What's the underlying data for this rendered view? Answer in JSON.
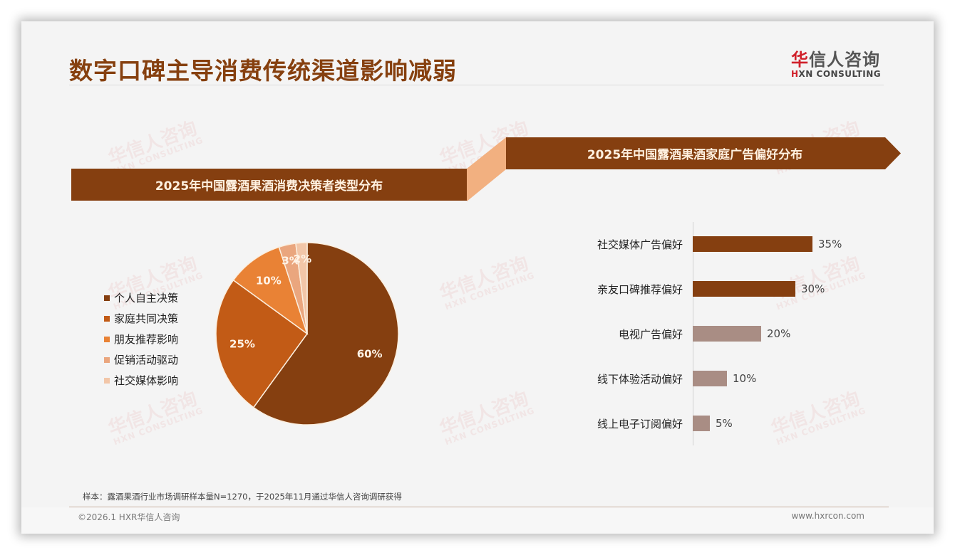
{
  "page": {
    "title": "数字口碑主导消费传统渠道影响减弱",
    "logo": {
      "cn_first": "华",
      "cn_rest": "信人咨询",
      "en_first": "H",
      "en_rest": "XN CONSULTING"
    },
    "watermark": {
      "cn": "华信人咨询",
      "en": "HXN CONSULTING"
    },
    "note": "样本：露酒果酒行业市场调研样本量N=1270，于2025年11月通过华信人咨询调研获得",
    "copyright": "©2026.1 HXR华信人咨询",
    "url": "www.hxrcon.com"
  },
  "colors": {
    "brand_brown": "#853f10",
    "connector": "#f2b080",
    "title": "#86400f",
    "bar_dark": "#853f10",
    "bar_light": "#a98d84"
  },
  "pie_chart": {
    "title": "2025年中国露酒果酒消费决策者类型分布",
    "legend": [
      {
        "label": "个人自主决策",
        "color": "#853f10"
      },
      {
        "label": "家庭共同决策",
        "color": "#c25b16"
      },
      {
        "label": "朋友推荐影响",
        "color": "#e98235"
      },
      {
        "label": "促销活动驱动",
        "color": "#eaa67e"
      },
      {
        "label": "社交媒体影响",
        "color": "#f2c6a8"
      }
    ]
  },
  "bar_chart": {
    "title": "2025年中国露酒果酒家庭广告偏好分布",
    "rows": [
      {
        "label": "社交媒体广告偏好",
        "value": "35%"
      },
      {
        "label": "亲友口碑推荐偏好",
        "value": "30%"
      },
      {
        "label": "电视广告偏好",
        "value": "20%"
      },
      {
        "label": "线下体验活动偏好",
        "value": "10%"
      },
      {
        "label": "线上电子订阅偏好",
        "value": "5%"
      }
    ]
  },
  "chart_data": [
    {
      "type": "pie",
      "title": "2025年中国露酒果酒消费决策者类型分布",
      "categories": [
        "个人自主决策",
        "家庭共同决策",
        "朋友推荐影响",
        "促销活动驱动",
        "社交媒体影响"
      ],
      "values": [
        60,
        25,
        10,
        3,
        2
      ],
      "labels": [
        "60%",
        "25%",
        "10%",
        "3%",
        "2%"
      ],
      "colors": [
        "#853f10",
        "#c25b16",
        "#e98235",
        "#eaa67e",
        "#f2c6a8"
      ],
      "legend_position": "left"
    },
    {
      "type": "bar",
      "orientation": "horizontal",
      "title": "2025年中国露酒果酒家庭广告偏好分布",
      "categories": [
        "社交媒体广告偏好",
        "亲友口碑推荐偏好",
        "电视广告偏好",
        "线下体验活动偏好",
        "线上电子订阅偏好"
      ],
      "values": [
        35,
        30,
        20,
        10,
        5
      ],
      "labels": [
        "35%",
        "30%",
        "20%",
        "10%",
        "5%"
      ],
      "colors": [
        "#853f10",
        "#853f10",
        "#a98d84",
        "#a98d84",
        "#a98d84"
      ],
      "xlabel": "",
      "ylabel": "",
      "grid": false
    }
  ]
}
